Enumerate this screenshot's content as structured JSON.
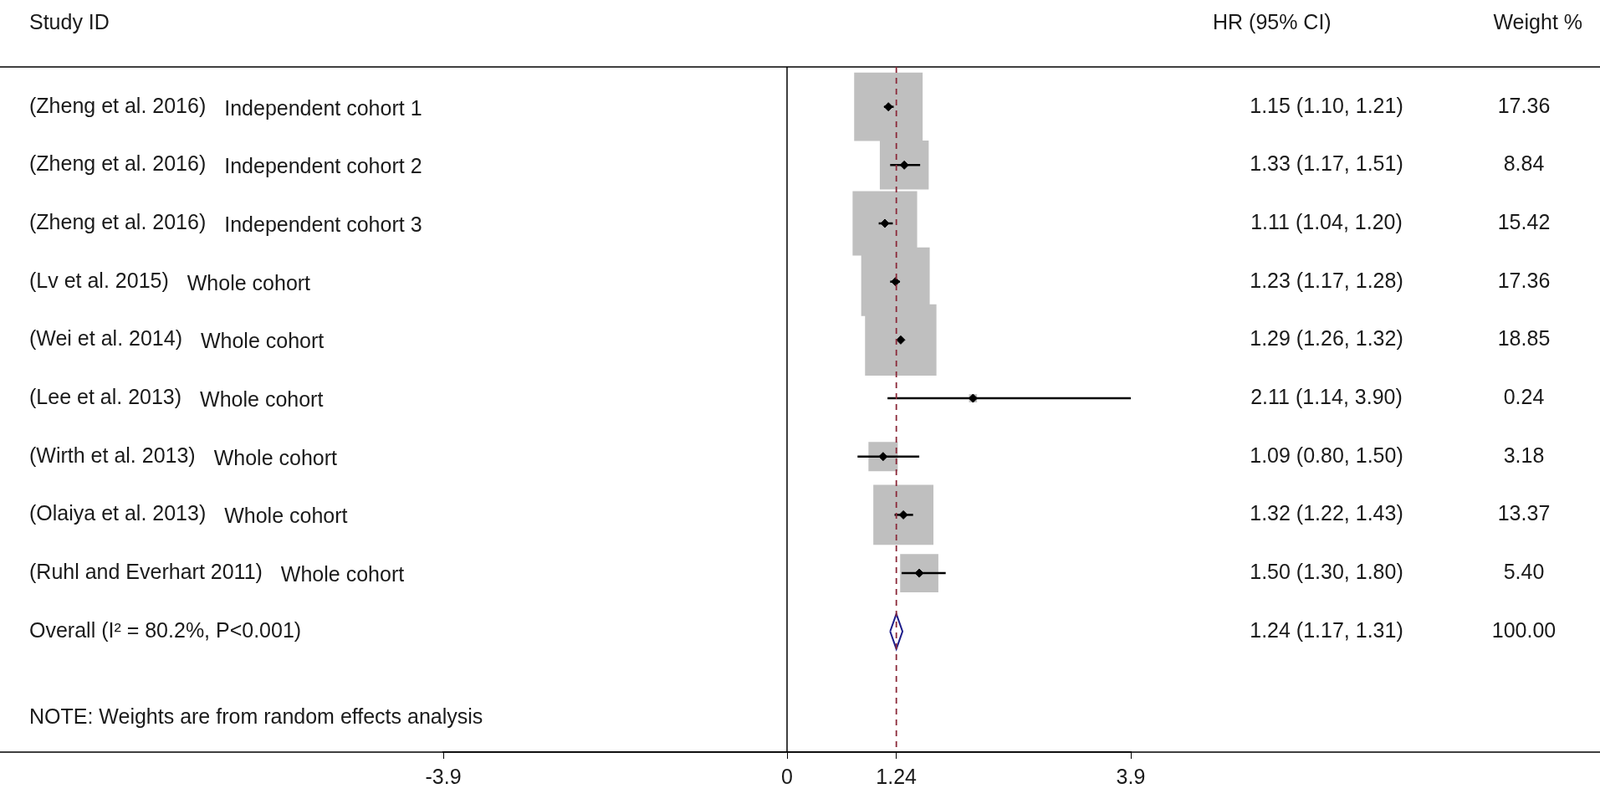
{
  "chart_data": {
    "type": "forest",
    "columns": [
      "Study ID",
      "HR (95% CI)",
      "Weight %"
    ],
    "studies": [
      {
        "study": "(Zheng et al. 2016)",
        "subgroup": "Independent cohort 1",
        "hr": 1.15,
        "ci": [
          1.1,
          1.21
        ],
        "hr_label": "1.15 (1.10, 1.21)",
        "weight": 17.36,
        "weight_label": "17.36"
      },
      {
        "study": "(Zheng et al. 2016)",
        "subgroup": "Independent cohort 2",
        "hr": 1.33,
        "ci": [
          1.17,
          1.51
        ],
        "hr_label": "1.33 (1.17, 1.51)",
        "weight": 8.84,
        "weight_label": "8.84"
      },
      {
        "study": "(Zheng et al. 2016)",
        "subgroup": "Independent cohort 3",
        "hr": 1.11,
        "ci": [
          1.04,
          1.2
        ],
        "hr_label": "1.11 (1.04, 1.20)",
        "weight": 15.42,
        "weight_label": "15.42"
      },
      {
        "study": "(Lv et al. 2015)",
        "subgroup": "Whole cohort",
        "hr": 1.23,
        "ci": [
          1.17,
          1.28
        ],
        "hr_label": "1.23 (1.17, 1.28)",
        "weight": 17.36,
        "weight_label": "17.36"
      },
      {
        "study": "(Wei et al. 2014)",
        "subgroup": "Whole cohort",
        "hr": 1.29,
        "ci": [
          1.26,
          1.32
        ],
        "hr_label": "1.29 (1.26, 1.32)",
        "weight": 18.85,
        "weight_label": "18.85"
      },
      {
        "study": "(Lee et al. 2013)",
        "subgroup": "Whole cohort",
        "hr": 2.11,
        "ci": [
          1.14,
          3.9
        ],
        "hr_label": "2.11 (1.14, 3.90)",
        "weight": 0.24,
        "weight_label": "0.24"
      },
      {
        "study": "(Wirth et al. 2013)",
        "subgroup": "Whole cohort",
        "hr": 1.09,
        "ci": [
          0.8,
          1.5
        ],
        "hr_label": "1.09 (0.80, 1.50)",
        "weight": 3.18,
        "weight_label": "3.18"
      },
      {
        "study": "(Olaiya et al. 2013)",
        "subgroup": "Whole cohort",
        "hr": 1.32,
        "ci": [
          1.22,
          1.43
        ],
        "hr_label": "1.32 (1.22, 1.43)",
        "weight": 13.37,
        "weight_label": "13.37"
      },
      {
        "study": "(Ruhl and Everhart 2011)",
        "subgroup": "Whole cohort",
        "hr": 1.5,
        "ci": [
          1.3,
          1.8
        ],
        "hr_label": "1.50 (1.30, 1.80)",
        "weight": 5.4,
        "weight_label": "5.40"
      }
    ],
    "overall": {
      "label": "Overall (I² = 80.2%, P<0.001)",
      "hr": 1.24,
      "ci": [
        1.17,
        1.31
      ],
      "hr_label": "1.24 (1.17, 1.31)",
      "weight": 100,
      "weight_label": "100.00"
    },
    "note": "NOTE: Weights are from random effects analysis",
    "null_line": 0,
    "xlim": [
      -3.9,
      3.9
    ],
    "xticks": [
      -3.9,
      0,
      1.24,
      3.9
    ],
    "color": "#bfbfbf",
    "grid": false
  }
}
